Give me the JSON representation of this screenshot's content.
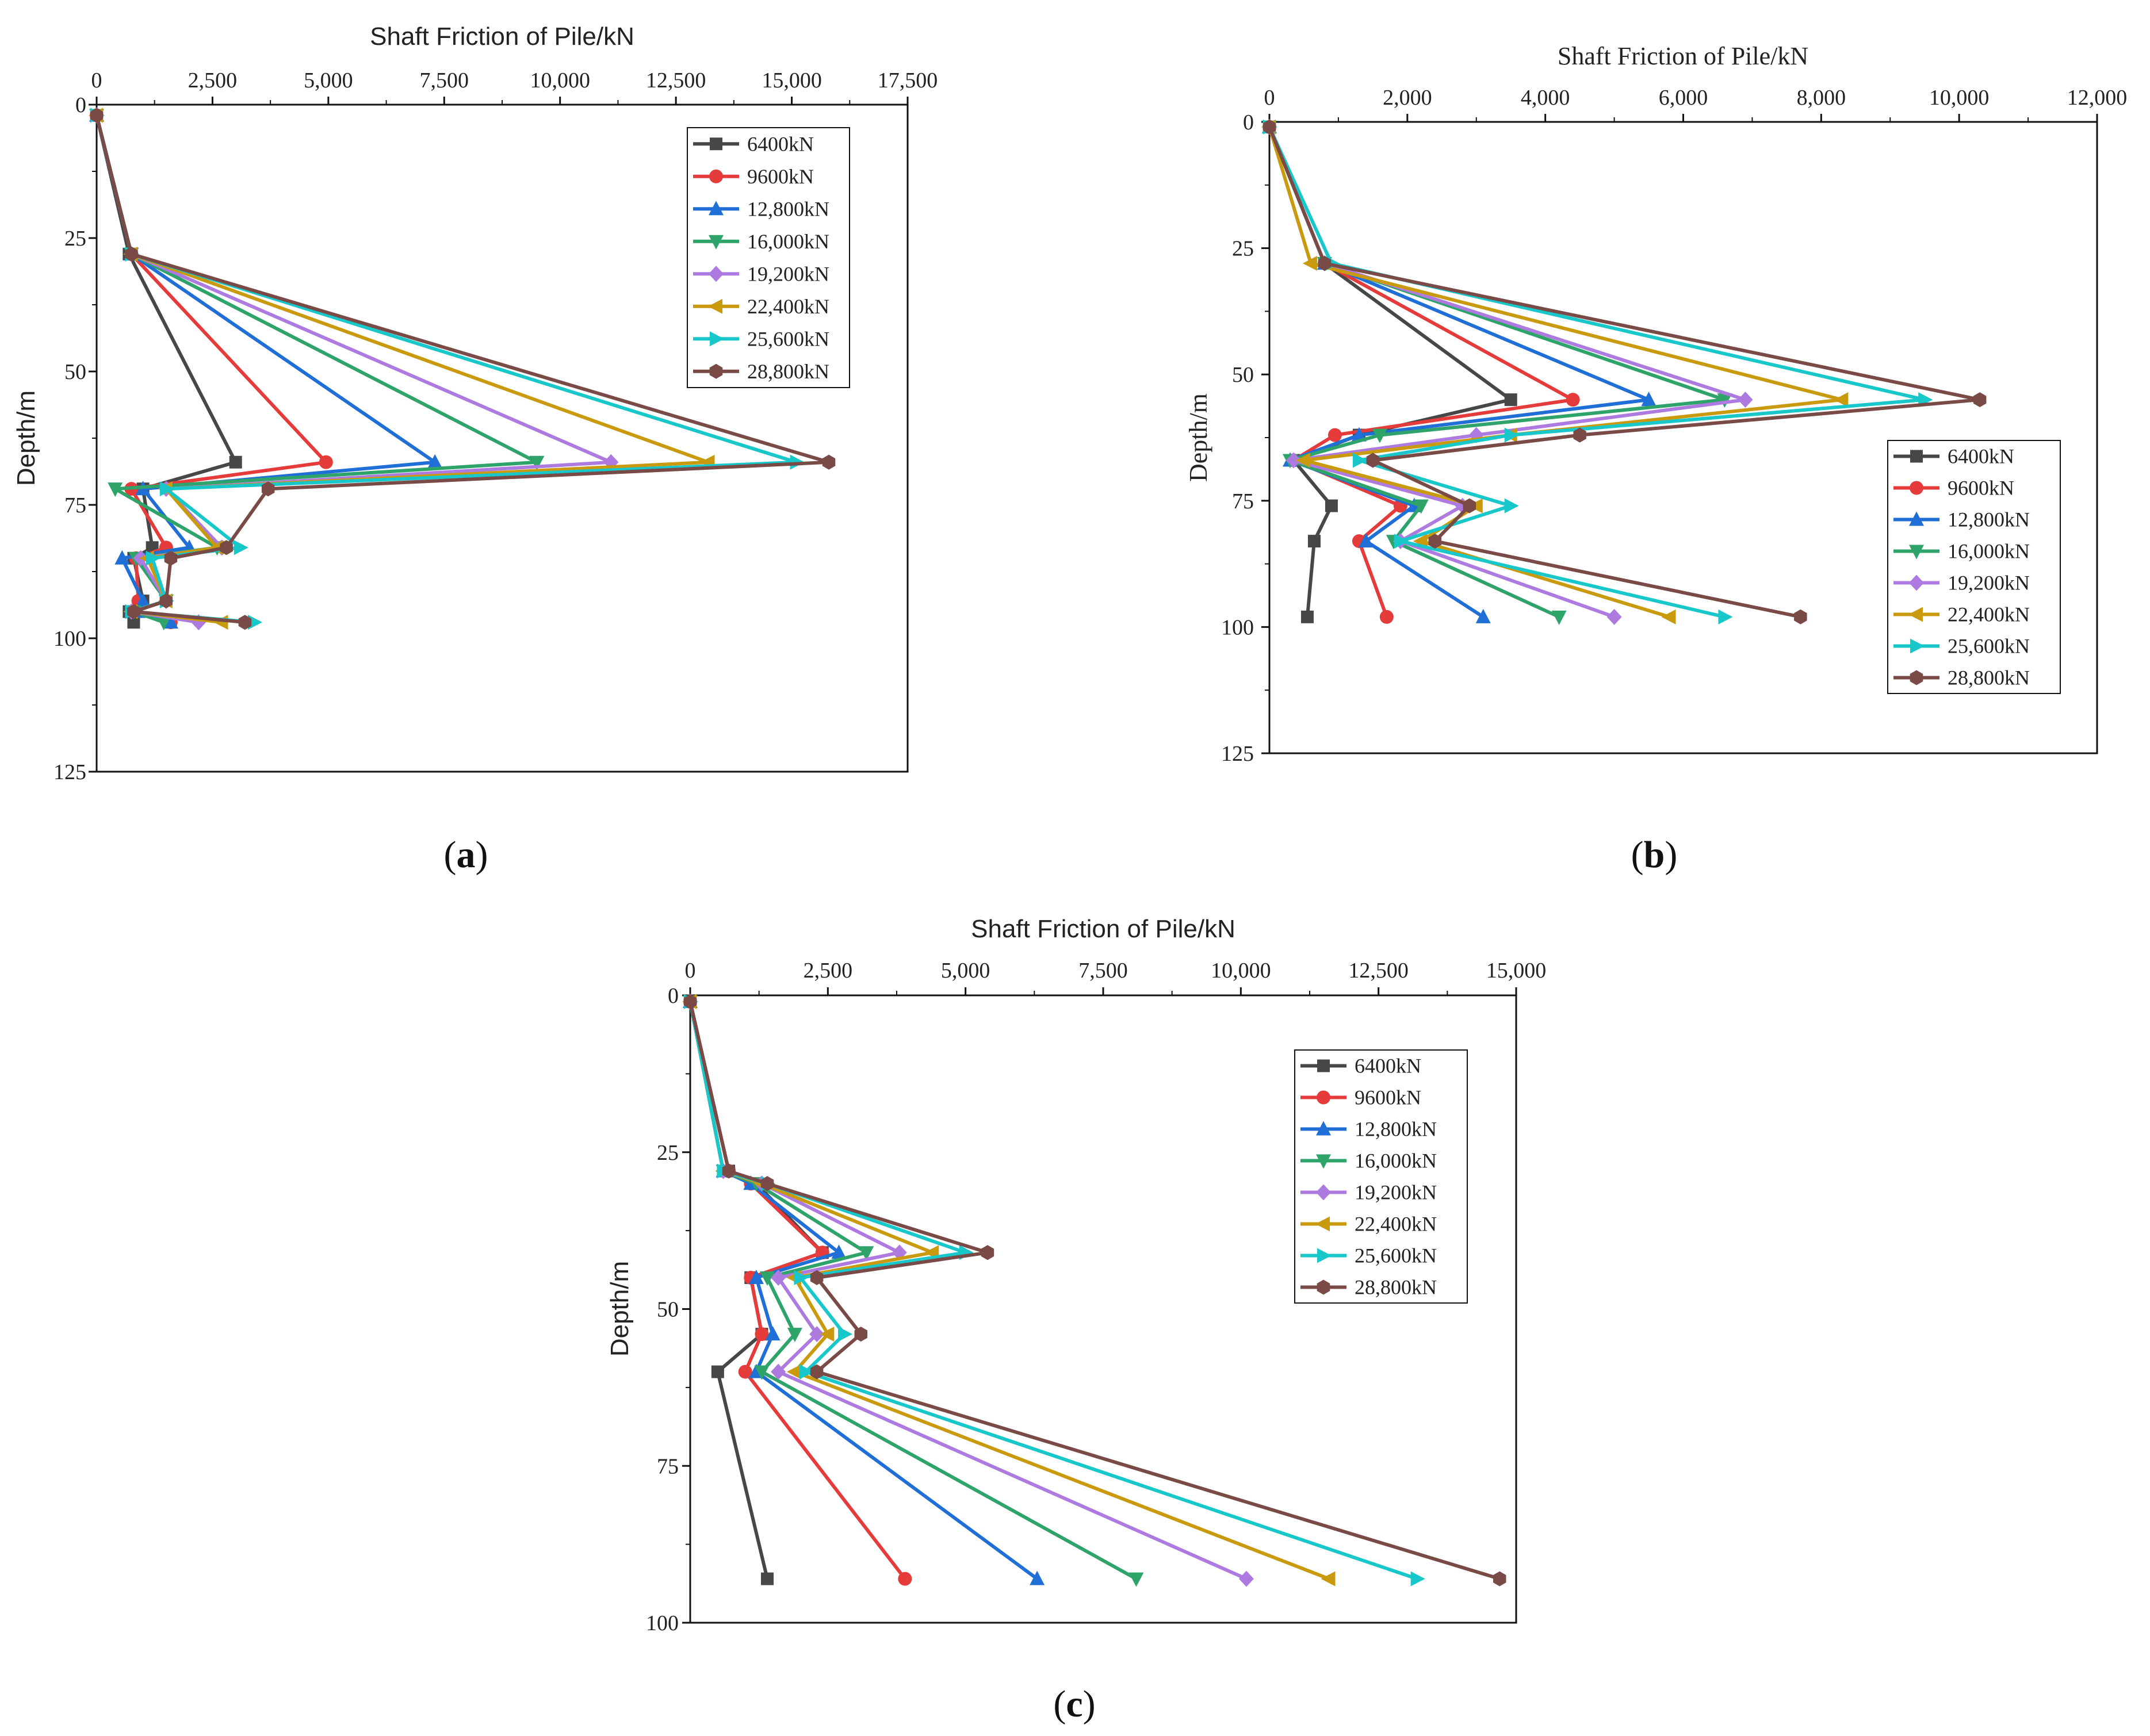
{
  "figure": {
    "labels": [
      {
        "open": "(",
        "letter": "a",
        "close": ")"
      },
      {
        "open": "(",
        "letter": "b",
        "close": ")"
      },
      {
        "open": "(",
        "letter": "c",
        "close": ")"
      }
    ]
  },
  "colors": {
    "6400kN": "#474747",
    "9600kN": "#e63b3b",
    "12,800kN": "#1f6fd6",
    "16,000kN": "#2ea36a",
    "19,200kN": "#ad7be0",
    "22,400kN": "#c99a0e",
    "25,600kN": "#18c7c9",
    "28,800kN": "#7a4a46"
  },
  "chart_data": [
    {
      "type": "line",
      "panel": "a",
      "xlabel": "Shaft Friction of Pile/kN",
      "ylabel": "Depth/m",
      "xlim": [
        0,
        17500
      ],
      "ylim": [
        0,
        125
      ],
      "xticks": [
        "0",
        "2,500",
        "5,000",
        "7,500",
        "10,000",
        "12,500",
        "15,000",
        "17,500"
      ],
      "xtick_values": [
        0,
        2500,
        5000,
        7500,
        10000,
        12500,
        15000,
        17500
      ],
      "yticks": [
        "0",
        "25",
        "50",
        "75",
        "100",
        "125"
      ],
      "ytick_values": [
        0,
        25,
        50,
        75,
        100,
        125
      ],
      "legend_position": "top-right",
      "series": [
        {
          "name": "6400kN",
          "marker": "square",
          "x": [
            0,
            700,
            3000,
            1000,
            1200,
            800,
            1000,
            700,
            800
          ],
          "y": [
            2,
            28,
            67,
            72,
            83,
            85,
            93,
            95,
            97
          ]
        },
        {
          "name": "9600kN",
          "marker": "circle",
          "x": [
            0,
            750,
            4950,
            750,
            1500,
            850,
            900,
            800,
            1600
          ],
          "y": [
            2,
            28,
            67,
            72,
            83,
            85,
            93,
            95,
            97
          ]
        },
        {
          "name": "12,800kN",
          "marker": "triangle-up",
          "x": [
            0,
            750,
            7300,
            1000,
            2000,
            550,
            1000,
            900,
            1600
          ],
          "y": [
            2,
            28,
            67,
            72,
            83,
            85,
            93,
            95,
            97
          ]
        },
        {
          "name": "16,000kN",
          "marker": "triangle-down",
          "x": [
            0,
            750,
            9500,
            400,
            2600,
            850,
            1500,
            800,
            1450
          ],
          "y": [
            2,
            28,
            67,
            72,
            83,
            85,
            93,
            95,
            97
          ]
        },
        {
          "name": "19,200kN",
          "marker": "diamond",
          "x": [
            0,
            750,
            11100,
            1500,
            2700,
            950,
            1500,
            750,
            2200
          ],
          "y": [
            2,
            28,
            67,
            72,
            83,
            85,
            93,
            95,
            97
          ]
        },
        {
          "name": "22,400kN",
          "marker": "triangle-left",
          "x": [
            0,
            750,
            13200,
            1500,
            2600,
            1100,
            1500,
            750,
            2700
          ],
          "y": [
            2,
            28,
            67,
            72,
            83,
            85,
            93,
            95,
            97
          ]
        },
        {
          "name": "25,600kN",
          "marker": "triangle-right",
          "x": [
            0,
            750,
            15100,
            1500,
            3100,
            1200,
            1500,
            750,
            3400
          ],
          "y": [
            2,
            28,
            67,
            72,
            83,
            85,
            93,
            95,
            97
          ]
        },
        {
          "name": "28,800kN",
          "marker": "hexagon",
          "x": [
            0,
            750,
            15800,
            3700,
            2800,
            1600,
            1500,
            800,
            3200
          ],
          "y": [
            2,
            28,
            67,
            72,
            83,
            85,
            93,
            95,
            97
          ]
        }
      ]
    },
    {
      "type": "line",
      "panel": "b",
      "xlabel": "Shaft Friction of Pile/kN",
      "ylabel": "Depth/m",
      "xlim": [
        0,
        12000
      ],
      "ylim": [
        0,
        125
      ],
      "xticks": [
        "0",
        "2,000",
        "4,000",
        "6,000",
        "8,000",
        "10,000",
        "12,000"
      ],
      "xtick_values": [
        0,
        2000,
        4000,
        6000,
        8000,
        10000,
        12000
      ],
      "yticks": [
        "0",
        "25",
        "50",
        "75",
        "100",
        "125"
      ],
      "ytick_values": [
        0,
        25,
        50,
        75,
        100,
        125
      ],
      "legend_position": "bottom-right",
      "series": [
        {
          "name": "6400kN",
          "marker": "square",
          "x": [
            0,
            800,
            3500,
            1300,
            350,
            900,
            650,
            550
          ],
          "y": [
            1,
            28,
            55,
            62,
            67,
            76,
            83,
            98
          ]
        },
        {
          "name": "9600kN",
          "marker": "circle",
          "x": [
            0,
            800,
            4400,
            950,
            350,
            1900,
            1300,
            1700
          ],
          "y": [
            1,
            28,
            55,
            62,
            67,
            76,
            83,
            98
          ]
        },
        {
          "name": "12,800kN",
          "marker": "triangle-up",
          "x": [
            0,
            800,
            5500,
            1300,
            300,
            2100,
            1400,
            3100
          ],
          "y": [
            1,
            28,
            55,
            62,
            67,
            76,
            83,
            98
          ]
        },
        {
          "name": "16,000kN",
          "marker": "triangle-down",
          "x": [
            0,
            800,
            6600,
            1600,
            300,
            2200,
            1800,
            4200
          ],
          "y": [
            1,
            28,
            55,
            62,
            67,
            76,
            83,
            98
          ]
        },
        {
          "name": "19,200kN",
          "marker": "diamond",
          "x": [
            0,
            800,
            6900,
            3000,
            350,
            2800,
            1900,
            5000
          ],
          "y": [
            1,
            28,
            55,
            62,
            67,
            76,
            83,
            98
          ]
        },
        {
          "name": "22,400kN",
          "marker": "triangle-left",
          "x": [
            0,
            600,
            8300,
            3500,
            500,
            3000,
            2200,
            5800
          ],
          "y": [
            1,
            28,
            55,
            62,
            67,
            76,
            83,
            98
          ]
        },
        {
          "name": "25,600kN",
          "marker": "triangle-right",
          "x": [
            0,
            900,
            9500,
            3500,
            1300,
            3500,
            1900,
            6600
          ],
          "y": [
            1,
            28,
            55,
            62,
            67,
            76,
            83,
            98
          ]
        },
        {
          "name": "28,800kN",
          "marker": "hexagon",
          "x": [
            0,
            800,
            10300,
            4500,
            1500,
            2900,
            2400,
            7700
          ],
          "y": [
            1,
            28,
            55,
            62,
            67,
            76,
            83,
            98
          ]
        }
      ]
    },
    {
      "type": "line",
      "panel": "c",
      "xlabel": "Shaft Friction of Pile/kN",
      "ylabel": "Depth/m",
      "xlim": [
        0,
        15000
      ],
      "ylim": [
        0,
        100
      ],
      "xticks": [
        "0",
        "2,500",
        "5,000",
        "7,500",
        "10,000",
        "12,500",
        "15,000"
      ],
      "xtick_values": [
        0,
        2500,
        5000,
        7500,
        10000,
        12500,
        15000
      ],
      "yticks": [
        "0",
        "25",
        "50",
        "75",
        "100"
      ],
      "ytick_values": [
        0,
        25,
        50,
        75,
        100
      ],
      "legend_position": "top-right",
      "series": [
        {
          "name": "6400kN",
          "marker": "square",
          "x": [
            0,
            700,
            1200,
            2400,
            1100,
            1300,
            500,
            1400
          ],
          "y": [
            1,
            28,
            30,
            41,
            45,
            54,
            60,
            93
          ]
        },
        {
          "name": "9600kN",
          "marker": "circle",
          "x": [
            0,
            700,
            1100,
            2400,
            1100,
            1300,
            1000,
            3900
          ],
          "y": [
            1,
            28,
            30,
            41,
            45,
            54,
            60,
            93
          ]
        },
        {
          "name": "12,800kN",
          "marker": "triangle-up",
          "x": [
            0,
            600,
            1100,
            2700,
            1200,
            1500,
            1200,
            6300
          ],
          "y": [
            1,
            28,
            30,
            41,
            45,
            54,
            60,
            93
          ]
        },
        {
          "name": "16,000kN",
          "marker": "triangle-down",
          "x": [
            0,
            600,
            1200,
            3200,
            1400,
            1900,
            1300,
            8100
          ],
          "y": [
            1,
            28,
            30,
            41,
            45,
            54,
            60,
            93
          ]
        },
        {
          "name": "19,200kN",
          "marker": "diamond",
          "x": [
            0,
            600,
            1300,
            3800,
            1600,
            2300,
            1600,
            10100
          ],
          "y": [
            1,
            28,
            30,
            41,
            45,
            54,
            60,
            93
          ]
        },
        {
          "name": "22,400kN",
          "marker": "triangle-left",
          "x": [
            0,
            600,
            1300,
            4400,
            1900,
            2500,
            1900,
            11600
          ],
          "y": [
            1,
            28,
            30,
            41,
            45,
            54,
            60,
            93
          ]
        },
        {
          "name": "25,600kN",
          "marker": "triangle-right",
          "x": [
            0,
            600,
            1400,
            5000,
            2000,
            2800,
            2100,
            13200
          ],
          "y": [
            1,
            28,
            30,
            41,
            45,
            54,
            60,
            93
          ]
        },
        {
          "name": "28,800kN",
          "marker": "hexagon",
          "x": [
            0,
            700,
            1400,
            5400,
            2300,
            3100,
            2300,
            14700
          ],
          "y": [
            1,
            28,
            30,
            41,
            45,
            54,
            60,
            93
          ]
        }
      ]
    }
  ]
}
